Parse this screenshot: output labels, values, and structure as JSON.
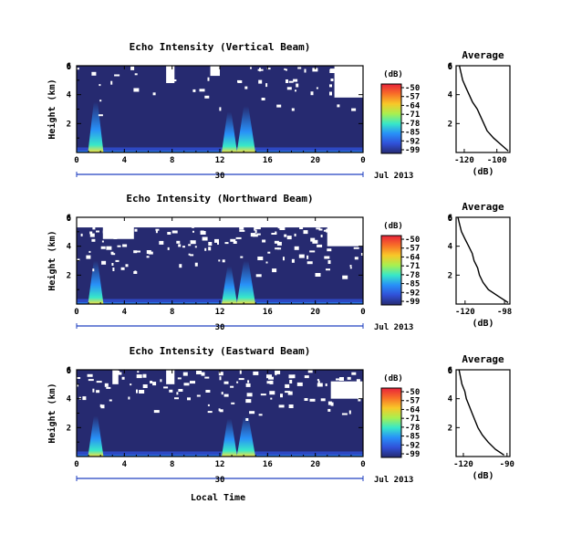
{
  "figure": {
    "xlabel": "Local Time",
    "date_label": "Jul 2013",
    "day_label": "30",
    "x_ticks": [
      "0",
      "4",
      "8",
      "12",
      "16",
      "20",
      "0"
    ],
    "y_ticks": [
      "2",
      "4",
      "6"
    ],
    "ylabel": "Height (km)",
    "colorbar_unit": "(dB)",
    "colorbar_ticks": [
      "-50",
      "-57",
      "-64",
      "-71",
      "-78",
      "-85",
      "-92",
      "-99"
    ],
    "colorbar_colors": [
      "#e8243a",
      "#f87028",
      "#f8c828",
      "#a8f050",
      "#38e8c8",
      "#2890f8",
      "#3050d8",
      "#262a70"
    ],
    "background_color": "#262a70",
    "avg_title": "Average",
    "avg_xlabel": "(dB)"
  },
  "chart_data": [
    {
      "type": "heatmap",
      "title": "Echo Intensity (Vertical Beam)",
      "xlabel": "",
      "ylabel": "Height (km)",
      "xlim": [
        0,
        24
      ],
      "ylim": [
        0,
        6
      ],
      "colorbar": {
        "label": "(dB)",
        "range": [
          -99,
          -50
        ]
      },
      "features": [
        {
          "t": 1.6,
          "h": 3.5,
          "w": 0.5,
          "level": "strong"
        },
        {
          "t": 12.8,
          "h": 2.8,
          "w": 0.5,
          "level": "strong"
        },
        {
          "t": 14.2,
          "h": 3.2,
          "w": 0.6,
          "level": "strong"
        }
      ],
      "nodata_regions": [
        {
          "t0": 21.6,
          "t1": 24,
          "h0": 3.8,
          "h1": 6
        },
        {
          "t0": 7.5,
          "t1": 8.2,
          "h0": 4.8,
          "h1": 6
        },
        {
          "t0": 11.2,
          "t1": 12.0,
          "h0": 5.3,
          "h1": 6
        }
      ],
      "average": {
        "xlabel": "(dB)",
        "x_ticks": [
          "-120",
          "-100"
        ],
        "xlim": [
          -125,
          -92
        ],
        "heights": [
          6.0,
          5.5,
          5.0,
          4.5,
          4.0,
          3.5,
          3.0,
          2.5,
          2.0,
          1.5,
          1.0,
          0.5,
          0.1
        ],
        "values": [
          -123,
          -122,
          -121,
          -119,
          -117,
          -115,
          -112,
          -110,
          -108,
          -106,
          -102,
          -97,
          -93
        ]
      }
    },
    {
      "type": "heatmap",
      "title": "Echo Intensity (Northward Beam)",
      "xlabel": "",
      "ylabel": "Height (km)",
      "xlim": [
        0,
        24
      ],
      "ylim": [
        0,
        6
      ],
      "colorbar": {
        "label": "(dB)",
        "range": [
          -99,
          -50
        ]
      },
      "features": [
        {
          "t": 1.6,
          "h": 3.0,
          "w": 0.5,
          "level": "strong"
        },
        {
          "t": 12.8,
          "h": 2.6,
          "w": 0.5,
          "level": "strong"
        },
        {
          "t": 14.2,
          "h": 3.0,
          "w": 0.6,
          "level": "strong"
        }
      ],
      "nodata_regions": [
        {
          "t0": 0,
          "t1": 24,
          "h0": 5.3,
          "h1": 6
        },
        {
          "t0": 21.0,
          "t1": 24,
          "h0": 4.0,
          "h1": 6
        },
        {
          "t0": 2.2,
          "t1": 4.8,
          "h0": 4.5,
          "h1": 6
        }
      ],
      "average": {
        "xlabel": "(dB)",
        "x_ticks": [
          "-120",
          "-98"
        ],
        "xlim": [
          -125,
          -95
        ],
        "heights": [
          6.0,
          5.5,
          5.0,
          4.5,
          4.0,
          3.5,
          3.0,
          2.5,
          2.0,
          1.5,
          1.0,
          0.5,
          0.1
        ],
        "values": [
          -124,
          -123,
          -122,
          -120,
          -118,
          -116,
          -115,
          -113,
          -112,
          -110,
          -107,
          -101,
          -96
        ]
      }
    },
    {
      "type": "heatmap",
      "title": "Echo Intensity (Eastward Beam)",
      "xlabel": "Local Time",
      "ylabel": "Height (km)",
      "xlim": [
        0,
        24
      ],
      "ylim": [
        0,
        6
      ],
      "colorbar": {
        "label": "(dB)",
        "range": [
          -99,
          -50
        ]
      },
      "features": [
        {
          "t": 1.6,
          "h": 2.8,
          "w": 0.5,
          "level": "strong"
        },
        {
          "t": 12.8,
          "h": 2.6,
          "w": 0.5,
          "level": "strong"
        },
        {
          "t": 14.2,
          "h": 2.8,
          "w": 0.6,
          "level": "strong"
        }
      ],
      "nodata_regions": [
        {
          "t0": 21.3,
          "t1": 24,
          "h0": 4.0,
          "h1": 5.2
        },
        {
          "t0": 3.0,
          "t1": 3.5,
          "h0": 5.0,
          "h1": 6
        },
        {
          "t0": 7.5,
          "t1": 8.2,
          "h0": 5.0,
          "h1": 6
        }
      ],
      "average": {
        "xlabel": "(dB)",
        "x_ticks": [
          "-120",
          "-90"
        ],
        "xlim": [
          -125,
          -88
        ],
        "heights": [
          6.0,
          5.5,
          5.0,
          4.5,
          4.0,
          3.5,
          3.0,
          2.5,
          2.0,
          1.5,
          1.0,
          0.5,
          0.1
        ],
        "values": [
          -123,
          -122,
          -121,
          -119,
          -118,
          -116,
          -114,
          -112,
          -110,
          -107,
          -103,
          -98,
          -92
        ]
      }
    }
  ]
}
